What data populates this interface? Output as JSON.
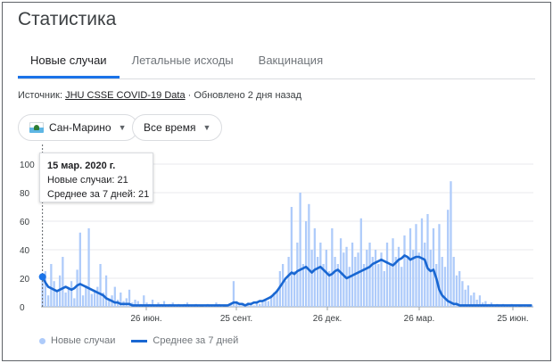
{
  "header": {
    "title": "Статистика"
  },
  "tabs": [
    {
      "label": "Новые случаи",
      "active": true
    },
    {
      "label": "Летальные исходы",
      "active": false
    },
    {
      "label": "Вакцинация",
      "active": false
    }
  ],
  "source": {
    "prefix": "Источник:",
    "link": "JHU CSSE COVID-19 Data",
    "updated": "· Обновлено 2 дня назад"
  },
  "filters": {
    "region": "Сан-Марино",
    "period": "Все время"
  },
  "tooltip": {
    "date": "15 мар. 2020 г.",
    "new_cases": "Новые случаи: 21",
    "avg7": "Среднее за 7 дней: 21"
  },
  "legend": {
    "bars": "Новые случаи",
    "line": "Среднее за 7 дней"
  },
  "colors": {
    "bars": "#aecbfa",
    "line": "#1967d2",
    "accent": "#1a73e8"
  },
  "chart_data": {
    "type": "bar",
    "x_ticks": [
      "26 июн.",
      "25 сент.",
      "26 дек.",
      "26 мар.",
      "25 июн."
    ],
    "y_ticks": [
      0,
      20,
      40,
      60,
      80,
      100
    ],
    "ylim": [
      0,
      110
    ],
    "series": [
      {
        "name": "Новые случаи",
        "type": "bar",
        "values": [
          21,
          25,
          8,
          30,
          18,
          12,
          22,
          35,
          10,
          14,
          18,
          6,
          26,
          52,
          8,
          15,
          55,
          9,
          12,
          14,
          30,
          10,
          22,
          6,
          8,
          14,
          5,
          10,
          4,
          6,
          12,
          3,
          5,
          4,
          2,
          8,
          3,
          2,
          5,
          1,
          3,
          2,
          4,
          1,
          2,
          3,
          1,
          2,
          1,
          2,
          3,
          1,
          1,
          2,
          1,
          0,
          1,
          2,
          1,
          1,
          3,
          2,
          1,
          0,
          1,
          2,
          18,
          4,
          1,
          2,
          1,
          3,
          2,
          1,
          4,
          2,
          3,
          5,
          4,
          8,
          10,
          12,
          25,
          30,
          18,
          35,
          70,
          25,
          45,
          80,
          30,
          60,
          72,
          40,
          55,
          35,
          45,
          30,
          40,
          25,
          55,
          35,
          30,
          48,
          38,
          42,
          28,
          45,
          35,
          38,
          62,
          30,
          40,
          45,
          35,
          40,
          30,
          38,
          25,
          45,
          30,
          48,
          35,
          42,
          28,
          50,
          35,
          55,
          40,
          58,
          38,
          62,
          45,
          65,
          40,
          55,
          30,
          58,
          35,
          28,
          68,
          88,
          35,
          22,
          25,
          18,
          12,
          15,
          8,
          10,
          5,
          8,
          3,
          4,
          2,
          3,
          1,
          2,
          1,
          2,
          1,
          1,
          2,
          1,
          1,
          0,
          1,
          1,
          0,
          1
        ]
      },
      {
        "name": "Среднее за 7 дней",
        "type": "line",
        "values": [
          21,
          17,
          14,
          13,
          12,
          11,
          12,
          13,
          14,
          13,
          12,
          13,
          15,
          16,
          15,
          14,
          13,
          12,
          11,
          10,
          9,
          8,
          6,
          5,
          4,
          3,
          3,
          2,
          2,
          2,
          2,
          1,
          1,
          1,
          1,
          1,
          1,
          1,
          1,
          1,
          1,
          1,
          1,
          1,
          1,
          1,
          1,
          1,
          1,
          1,
          1,
          1,
          1,
          1,
          1,
          1,
          1,
          1,
          1,
          1,
          1,
          1,
          1,
          1,
          1,
          2,
          3,
          3,
          2,
          2,
          1,
          2,
          2,
          3,
          3,
          4,
          4,
          5,
          6,
          7,
          9,
          11,
          14,
          17,
          20,
          22,
          24,
          23,
          25,
          26,
          27,
          28,
          26,
          24,
          26,
          27,
          28,
          26,
          24,
          22,
          23,
          25,
          26,
          24,
          22,
          20,
          21,
          22,
          23,
          24,
          25,
          26,
          27,
          28,
          30,
          31,
          32,
          33,
          32,
          31,
          30,
          29,
          31,
          33,
          34,
          36,
          35,
          33,
          34,
          35,
          35,
          34,
          33,
          27,
          25,
          26,
          20,
          12,
          8,
          6,
          4,
          3,
          2,
          2,
          1,
          1,
          1,
          1,
          1,
          1,
          1,
          1,
          1,
          1,
          1,
          1,
          1,
          1,
          1,
          1,
          1,
          1,
          1,
          1,
          1,
          1,
          1,
          1,
          1,
          1
        ]
      }
    ]
  }
}
